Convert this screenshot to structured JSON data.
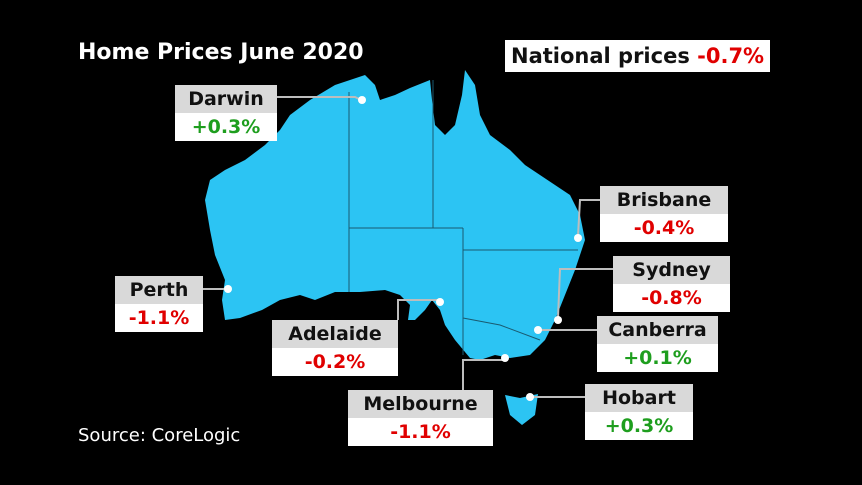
{
  "title": "Home Prices June 2020",
  "national": {
    "label": "National prices",
    "change": "-0.7%"
  },
  "cities": [
    {
      "name": "Darwin",
      "change": "+0.3%"
    },
    {
      "name": "Brisbane",
      "change": "-0.4%"
    },
    {
      "name": "Sydney",
      "change": "-0.8%"
    },
    {
      "name": "Canberra",
      "change": "+0.1%"
    },
    {
      "name": "Perth",
      "change": "-1.1%"
    },
    {
      "name": "Adelaide",
      "change": "-0.2%"
    },
    {
      "name": "Melbourne",
      "change": "-1.1%"
    },
    {
      "name": "Hobart",
      "change": "+0.3%"
    }
  ],
  "source": "Source: CoreLogic"
}
